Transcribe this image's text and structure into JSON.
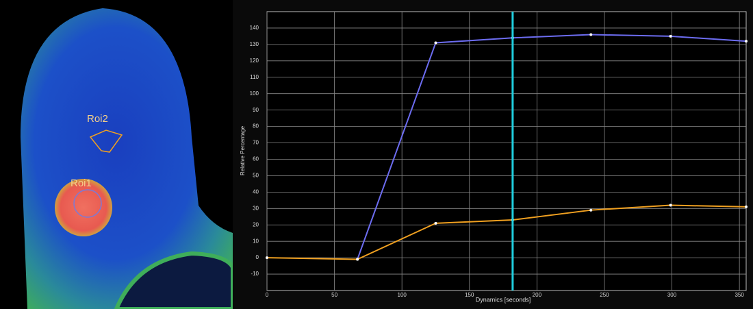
{
  "image": {
    "labels": [
      "Roi2",
      "Roi1"
    ]
  },
  "chart_data": {
    "type": "line",
    "ylabel": "Relative Percentage",
    "xlabel": "Dynamics [seconds]",
    "x": [
      0,
      67,
      125,
      182,
      240,
      299,
      355
    ],
    "series": [
      {
        "name": "Roi1",
        "color": "#6c6cf0",
        "values": [
          null,
          -1,
          131,
          134,
          136,
          135,
          132
        ]
      },
      {
        "name": "Roi2",
        "color": "#f0a020",
        "values": [
          0,
          -1,
          21,
          23,
          29,
          32,
          31
        ]
      }
    ],
    "xlim": [
      0,
      355
    ],
    "ylim": [
      -20,
      150
    ],
    "xticks": [
      0,
      50,
      100,
      150,
      200,
      250,
      300,
      350
    ],
    "yticks": [
      -10,
      0,
      10,
      20,
      30,
      40,
      50,
      60,
      70,
      80,
      90,
      100,
      110,
      120,
      130,
      140
    ],
    "vline": 182,
    "vline_color": "#20d0e0",
    "grid": true
  }
}
